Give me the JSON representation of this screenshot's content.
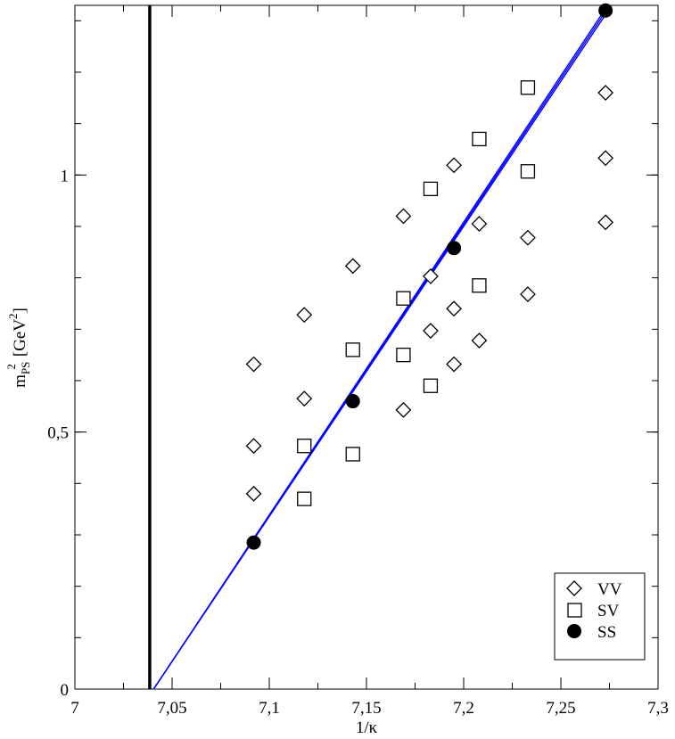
{
  "chart_data": {
    "type": "scatter",
    "xlabel": "1/κ",
    "ylabel_main": "m",
    "ylabel_sub": "PS",
    "ylabel_sup": "2",
    "ylabel_unit_open": "[GeV",
    "ylabel_unit_sup": "2",
    "ylabel_unit_close": "]",
    "xlim": [
      7.0,
      7.3
    ],
    "ylim": [
      0,
      1.33
    ],
    "x_ticks": [
      {
        "value": 7.0,
        "label": "7"
      },
      {
        "value": 7.05,
        "label": "7,05"
      },
      {
        "value": 7.1,
        "label": "7,1"
      },
      {
        "value": 7.15,
        "label": "7,15"
      },
      {
        "value": 7.2,
        "label": "7,2"
      },
      {
        "value": 7.25,
        "label": "7,25"
      },
      {
        "value": 7.3,
        "label": "7,3"
      }
    ],
    "y_ticks": [
      {
        "value": 0,
        "label": "0"
      },
      {
        "value": 0.5,
        "label": "0,5"
      },
      {
        "value": 1.0,
        "label": "1"
      }
    ],
    "x_minor_step": 0.025,
    "y_minor_step": 0.1,
    "grid": false,
    "legend_position": "bottom-right",
    "vertical_line_x": 7.0385,
    "series": [
      {
        "name": "VV",
        "marker": "diamond",
        "points": [
          {
            "x": 7.092,
            "y": 0.632,
            "err": 0.004
          },
          {
            "x": 7.092,
            "y": 0.473,
            "err": 0.004
          },
          {
            "x": 7.092,
            "y": 0.38,
            "err": 0.004
          },
          {
            "x": 7.118,
            "y": 0.728,
            "err": 0.004
          },
          {
            "x": 7.118,
            "y": 0.565,
            "err": 0.004
          },
          {
            "x": 7.143,
            "y": 0.823,
            "err": 0.004
          },
          {
            "x": 7.169,
            "y": 0.92,
            "err": 0.004
          },
          {
            "x": 7.169,
            "y": 0.543,
            "err": 0.004
          },
          {
            "x": 7.183,
            "y": 0.803,
            "err": 0.004
          },
          {
            "x": 7.183,
            "y": 0.697,
            "err": 0.004
          },
          {
            "x": 7.195,
            "y": 1.019,
            "err": 0.004
          },
          {
            "x": 7.195,
            "y": 0.74,
            "err": 0.004
          },
          {
            "x": 7.195,
            "y": 0.632,
            "err": 0.004
          },
          {
            "x": 7.208,
            "y": 0.905,
            "err": 0.004
          },
          {
            "x": 7.208,
            "y": 0.678,
            "err": 0.004
          },
          {
            "x": 7.233,
            "y": 0.878,
            "err": 0.004
          },
          {
            "x": 7.233,
            "y": 0.768,
            "err": 0.004
          },
          {
            "x": 7.273,
            "y": 1.16,
            "err": 0.004
          },
          {
            "x": 7.273,
            "y": 1.033,
            "err": 0.004
          },
          {
            "x": 7.273,
            "y": 0.908,
            "err": 0.004
          }
        ]
      },
      {
        "name": "SV",
        "marker": "square",
        "points": [
          {
            "x": 7.118,
            "y": 0.473,
            "err": 0.004
          },
          {
            "x": 7.118,
            "y": 0.37,
            "err": 0.004
          },
          {
            "x": 7.143,
            "y": 0.66,
            "err": 0.004
          },
          {
            "x": 7.143,
            "y": 0.457,
            "err": 0.004
          },
          {
            "x": 7.169,
            "y": 0.76,
            "err": 0.004
          },
          {
            "x": 7.169,
            "y": 0.65,
            "err": 0.004
          },
          {
            "x": 7.183,
            "y": 0.973,
            "err": 0.004
          },
          {
            "x": 7.183,
            "y": 0.59,
            "err": 0.004
          },
          {
            "x": 7.208,
            "y": 1.07,
            "err": 0.004
          },
          {
            "x": 7.208,
            "y": 0.785,
            "err": 0.004
          },
          {
            "x": 7.233,
            "y": 1.17,
            "err": 0.004
          },
          {
            "x": 7.233,
            "y": 1.007,
            "err": 0.004
          }
        ]
      },
      {
        "name": "SS",
        "marker": "filled-circle",
        "points": [
          {
            "x": 7.092,
            "y": 0.285,
            "err": 0.003
          },
          {
            "x": 7.143,
            "y": 0.56,
            "err": 0.003
          },
          {
            "x": 7.195,
            "y": 0.858,
            "err": 0.003
          },
          {
            "x": 7.273,
            "y": 1.32,
            "err": 0.003
          }
        ]
      }
    ],
    "fit_lines": [
      {
        "x1": 7.0405,
        "y1": 0.0,
        "x2": 7.273,
        "y2": 1.318
      },
      {
        "x1": 7.0405,
        "y1": 0.0,
        "x2": 7.273,
        "y2": 1.324
      },
      {
        "x1": 7.0405,
        "y1": 0.0,
        "x2": 7.273,
        "y2": 1.312
      }
    ],
    "fit_color": "#0000ff",
    "axis_color": "#000000"
  }
}
